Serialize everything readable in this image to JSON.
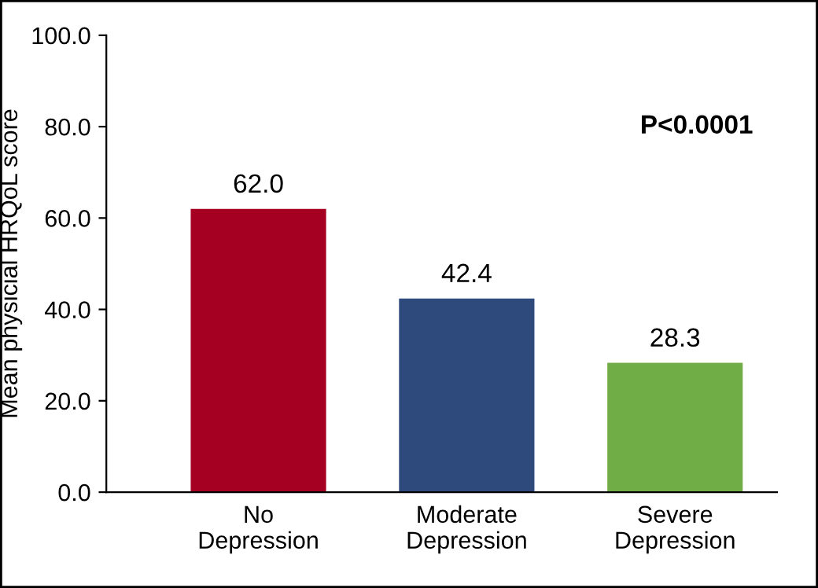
{
  "chart_data": {
    "type": "bar",
    "ylabel": "Mean physicial HRQoL score",
    "categories": [
      "No\nDepression",
      "Moderate\nDepression",
      "Severe\nDepression"
    ],
    "values": [
      62.0,
      42.4,
      28.3
    ],
    "colors": [
      "#a50021",
      "#2e4a7d",
      "#70ad47"
    ],
    "ylim": [
      0,
      100
    ],
    "yticks": [
      {
        "value": 0,
        "label": "0.0"
      },
      {
        "value": 20,
        "label": "20.0"
      },
      {
        "value": 40,
        "label": "40.0"
      },
      {
        "value": 60,
        "label": "60.0"
      },
      {
        "value": 80,
        "label": "80.0"
      },
      {
        "value": 100,
        "label": "100.0"
      }
    ],
    "value_labels": [
      "62.0",
      "42.4",
      "28.3"
    ],
    "annotations": [
      "P<0.0001"
    ],
    "grid": false,
    "legend": false
  }
}
